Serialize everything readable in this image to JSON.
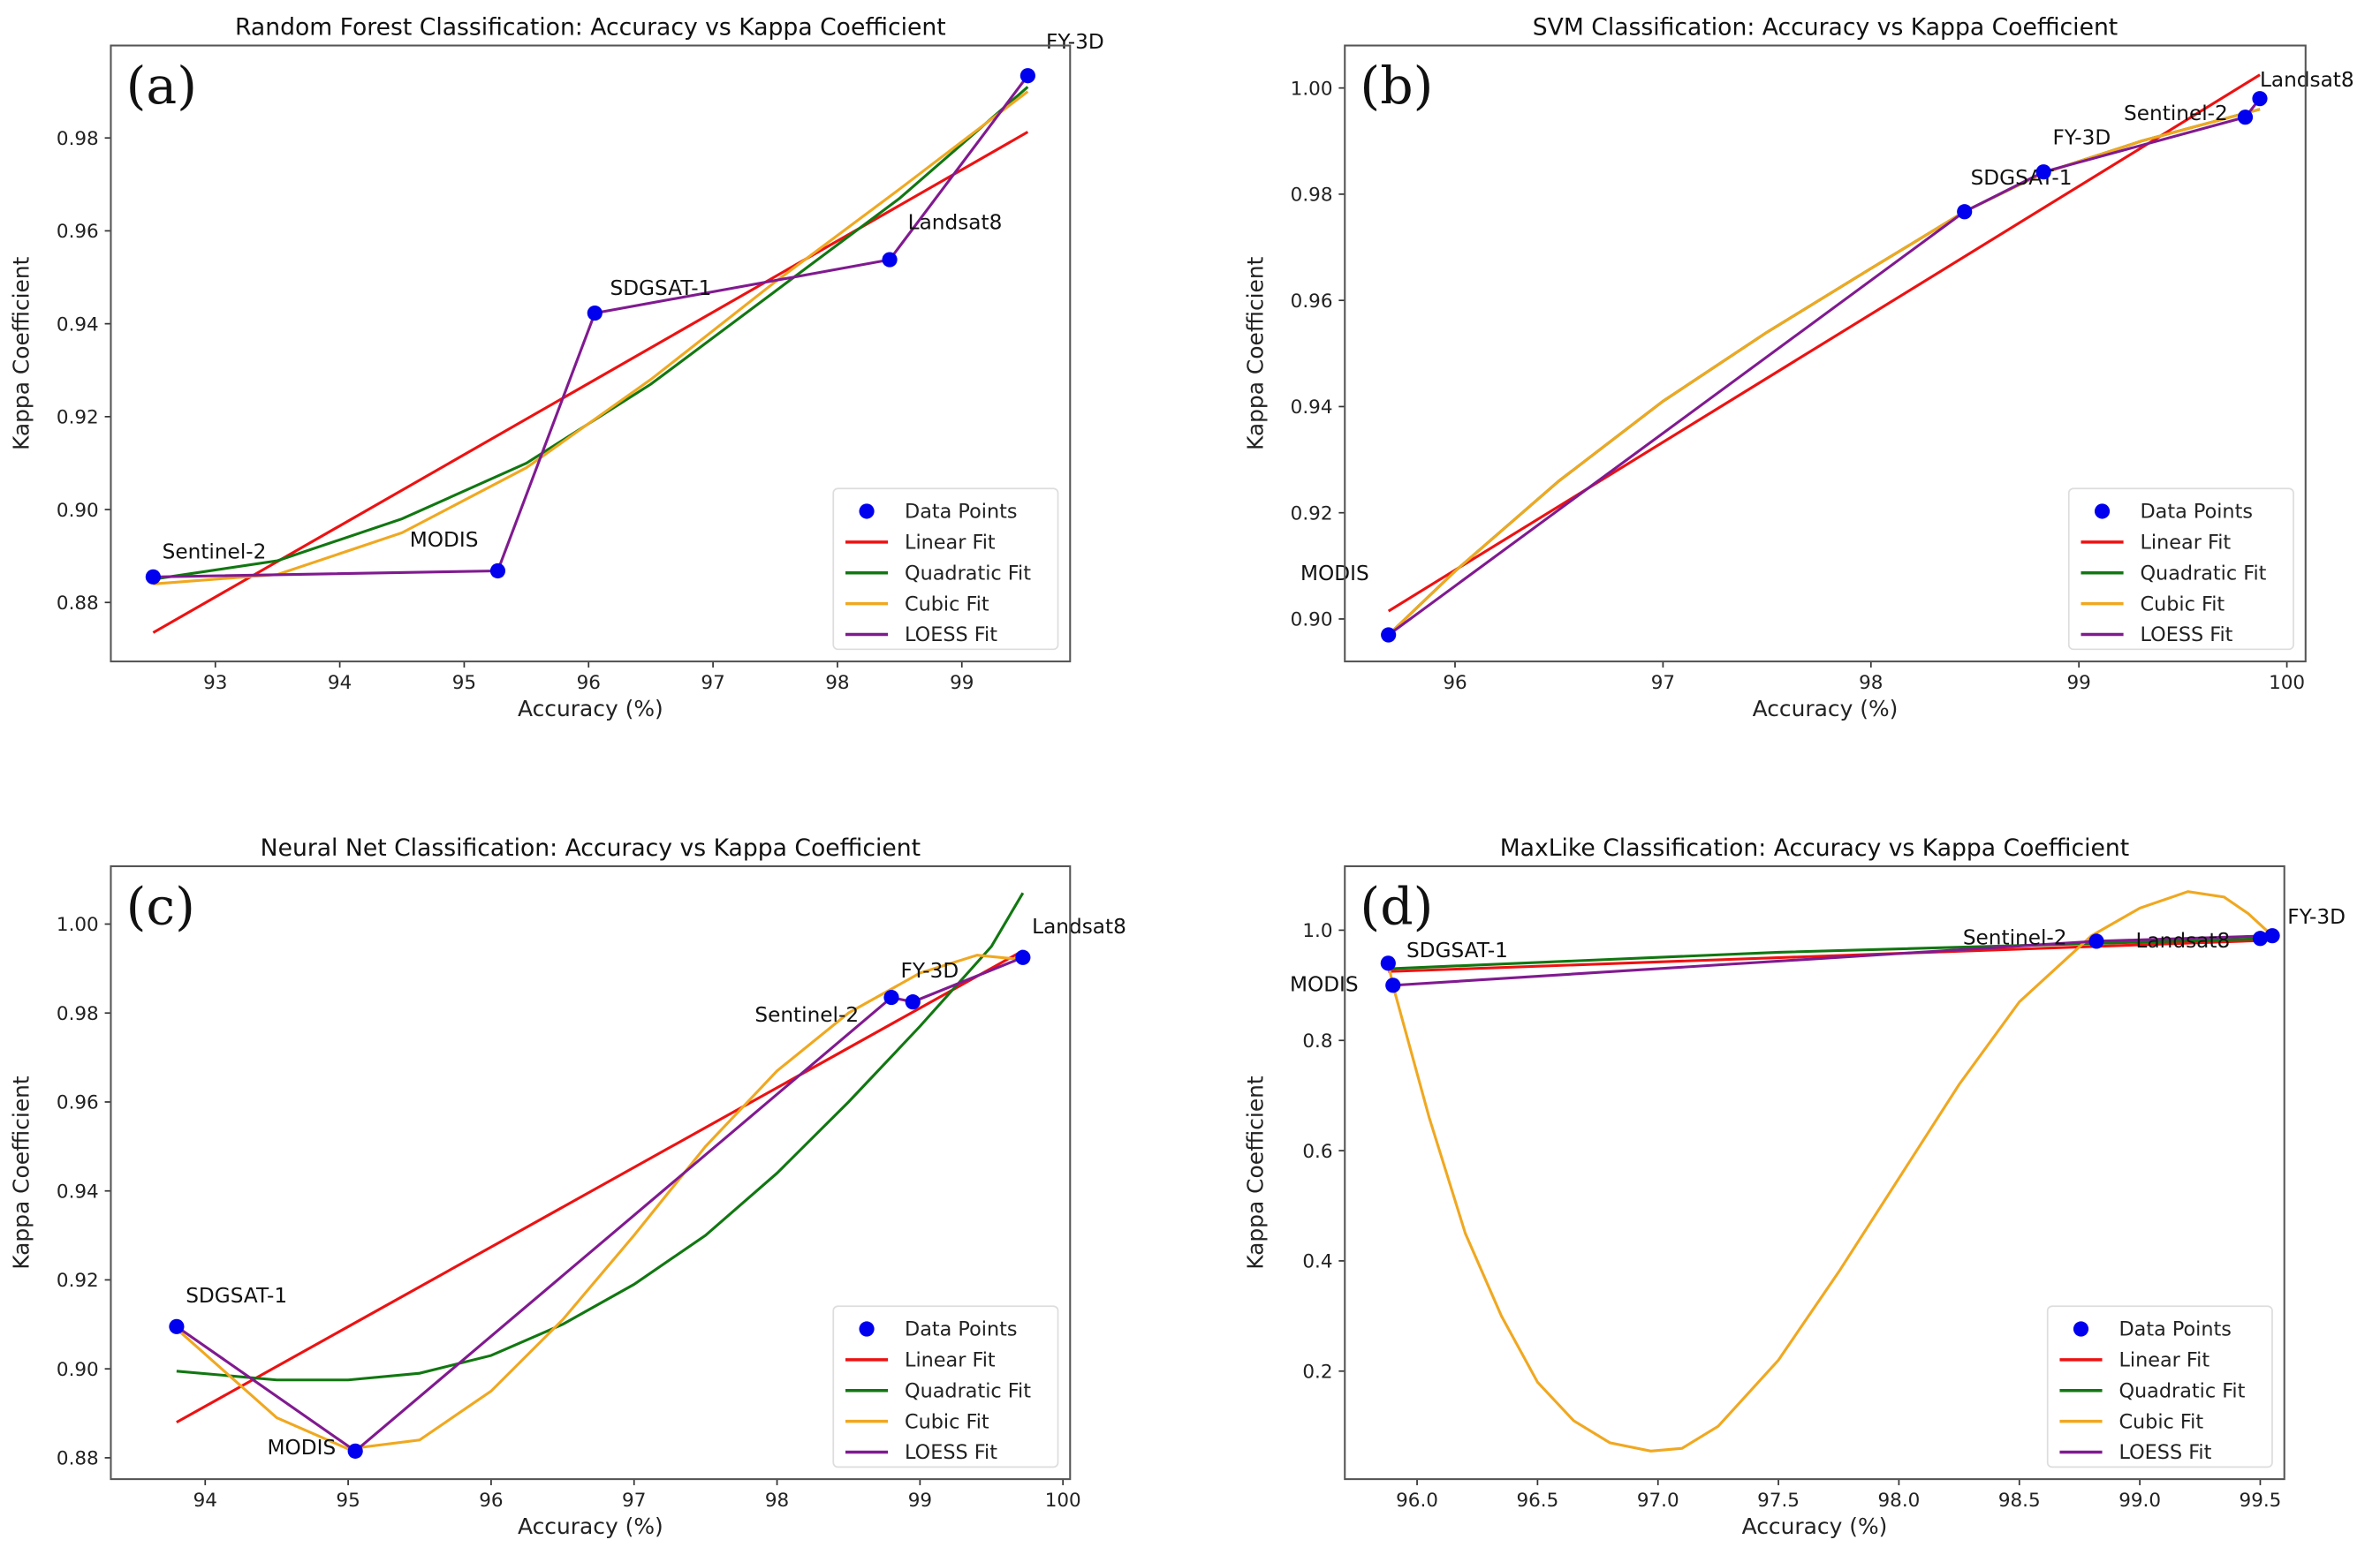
{
  "legend": [
    "Data Points",
    "Linear Fit",
    "Quadratic Fit",
    "Cubic Fit",
    "LOESS Fit"
  ],
  "colors": {
    "points": "#0000ee",
    "linear": "#ee1111",
    "quadratic": "#117711",
    "cubic": "#f0a820",
    "loess": "#801a90"
  },
  "chart_data": [
    {
      "type": "line",
      "panel": "(a)",
      "title": "Random Forest Classification: Accuracy vs Kappa Coefficient",
      "xlabel": "Accuracy (%)",
      "ylabel": "Kappa Coefficient",
      "xlim": [
        92.16,
        99.87
      ],
      "ylim": [
        0.8673,
        0.9999
      ],
      "xticks": [
        93,
        94,
        95,
        96,
        97,
        98,
        99
      ],
      "xtick_labels": [
        "93",
        "94",
        "95",
        "96",
        "97",
        "98",
        "99"
      ],
      "yticks": [
        0.88,
        0.9,
        0.92,
        0.94,
        0.96,
        0.98
      ],
      "ytick_labels": [
        "0.88",
        "0.90",
        "0.92",
        "0.94",
        "0.96",
        "0.98"
      ],
      "legend_position": "lower-right",
      "points": [
        {
          "label": "Sentinel-2",
          "x": 92.5,
          "y": 0.8855
        },
        {
          "label": "MODIS",
          "x": 95.27,
          "y": 0.8868
        },
        {
          "label": "SDGSAT-1",
          "x": 96.05,
          "y": 0.9423
        },
        {
          "label": "Landsat8",
          "x": 98.42,
          "y": 0.9538
        },
        {
          "label": "FY-3D",
          "x": 99.53,
          "y": 0.9934
        }
      ],
      "fits": {
        "linear": [
          [
            92.5,
            0.8735
          ],
          [
            99.53,
            0.9813
          ]
        ],
        "quadratic": [
          [
            92.5,
            0.885
          ],
          [
            93.5,
            0.889
          ],
          [
            94.5,
            0.898
          ],
          [
            95.5,
            0.91
          ],
          [
            96.5,
            0.927
          ],
          [
            97.5,
            0.947
          ],
          [
            98.5,
            0.967
          ],
          [
            99.53,
            0.991
          ]
        ],
        "cubic": [
          [
            92.5,
            0.884
          ],
          [
            93.5,
            0.886
          ],
          [
            94.5,
            0.895
          ],
          [
            95.5,
            0.909
          ],
          [
            96.5,
            0.928
          ],
          [
            97.5,
            0.949
          ],
          [
            98.5,
            0.969
          ],
          [
            99.53,
            0.99
          ]
        ],
        "loess": [
          [
            92.5,
            0.8855
          ],
          [
            95.27,
            0.8868
          ],
          [
            96.05,
            0.9423
          ],
          [
            98.42,
            0.9538
          ],
          [
            99.53,
            0.9934
          ]
        ]
      }
    },
    {
      "type": "line",
      "panel": "(b)",
      "title": "SVM Classification: Accuracy vs Kappa Coefficient",
      "xlabel": "Accuracy (%)",
      "ylabel": "Kappa Coefficient",
      "xlim": [
        95.47,
        100.09
      ],
      "ylim": [
        0.892,
        1.008
      ],
      "xticks": [
        96,
        97,
        98,
        99,
        100
      ],
      "xtick_labels": [
        "96",
        "97",
        "98",
        "99",
        "100"
      ],
      "yticks": [
        0.9,
        0.92,
        0.94,
        0.96,
        0.98,
        1.0
      ],
      "ytick_labels": [
        "0.90",
        "0.92",
        "0.94",
        "0.96",
        "0.98",
        "1.00"
      ],
      "legend_position": "lower-right",
      "points": [
        {
          "label": "MODIS",
          "x": 95.68,
          "y": 0.897
        },
        {
          "label": "SDGSAT-1",
          "x": 98.45,
          "y": 0.9767
        },
        {
          "label": "FY-3D",
          "x": 98.83,
          "y": 0.9842
        },
        {
          "label": "Sentinel-2",
          "x": 99.8,
          "y": 0.9945
        },
        {
          "label": "Landsat8",
          "x": 99.87,
          "y": 0.998
        }
      ],
      "fits": {
        "linear": [
          [
            95.68,
            0.9015
          ],
          [
            99.87,
            1.0025
          ]
        ],
        "quadratic": [
          [
            95.68,
            0.897
          ],
          [
            96,
            0.909
          ],
          [
            96.5,
            0.926
          ],
          [
            97,
            0.941
          ],
          [
            97.5,
            0.954
          ],
          [
            98,
            0.966
          ],
          [
            98.45,
            0.9767
          ],
          [
            98.83,
            0.984
          ],
          [
            99.3,
            0.99
          ],
          [
            99.87,
            0.996
          ]
        ],
        "cubic": [
          [
            95.68,
            0.897
          ],
          [
            96,
            0.909
          ],
          [
            96.5,
            0.926
          ],
          [
            97,
            0.941
          ],
          [
            97.5,
            0.954
          ],
          [
            98,
            0.966
          ],
          [
            98.45,
            0.9767
          ],
          [
            98.83,
            0.984
          ],
          [
            99.3,
            0.99
          ],
          [
            99.87,
            0.996
          ]
        ],
        "loess": [
          [
            95.68,
            0.897
          ],
          [
            98.45,
            0.9767
          ],
          [
            98.83,
            0.9842
          ],
          [
            99.8,
            0.9945
          ],
          [
            99.87,
            0.998
          ]
        ]
      }
    },
    {
      "type": "line",
      "panel": "(c)",
      "title": "Neural Net Classification: Accuracy vs Kappa Coefficient",
      "xlabel": "Accuracy (%)",
      "ylabel": "Kappa Coefficient",
      "xlim": [
        93.34,
        100.05
      ],
      "ylim": [
        0.8752,
        1.013
      ],
      "xticks": [
        94,
        95,
        96,
        97,
        98,
        99,
        100
      ],
      "xtick_labels": [
        "94",
        "95",
        "96",
        "97",
        "98",
        "99",
        "100"
      ],
      "yticks": [
        0.88,
        0.9,
        0.92,
        0.94,
        0.96,
        0.98,
        1.0
      ],
      "ytick_labels": [
        "0.88",
        "0.90",
        "0.92",
        "0.94",
        "0.96",
        "0.98",
        "1.00"
      ],
      "legend_position": "lower-right",
      "points": [
        {
          "label": "SDGSAT-1",
          "x": 93.8,
          "y": 0.9095
        },
        {
          "label": "MODIS",
          "x": 95.05,
          "y": 0.8815
        },
        {
          "label": "Sentinel-2",
          "x": 98.8,
          "y": 0.9835
        },
        {
          "label": "FY-3D",
          "x": 98.95,
          "y": 0.9825
        },
        {
          "label": "Landsat8",
          "x": 99.72,
          "y": 0.9925
        }
      ],
      "fits": {
        "linear": [
          [
            93.8,
            0.888
          ],
          [
            99.72,
            0.994
          ]
        ],
        "quadratic": [
          [
            93.8,
            0.8995
          ],
          [
            94.5,
            0.8975
          ],
          [
            95,
            0.8975
          ],
          [
            95.5,
            0.899
          ],
          [
            96,
            0.903
          ],
          [
            96.5,
            0.91
          ],
          [
            97,
            0.919
          ],
          [
            97.5,
            0.93
          ],
          [
            98,
            0.944
          ],
          [
            98.5,
            0.96
          ],
          [
            99,
            0.977
          ],
          [
            99.5,
            0.995
          ],
          [
            99.72,
            1.007
          ]
        ],
        "cubic": [
          [
            93.8,
            0.909
          ],
          [
            94.5,
            0.889
          ],
          [
            95,
            0.882
          ],
          [
            95.5,
            0.884
          ],
          [
            96,
            0.895
          ],
          [
            96.5,
            0.911
          ],
          [
            97,
            0.93
          ],
          [
            97.5,
            0.95
          ],
          [
            98,
            0.967
          ],
          [
            98.5,
            0.98
          ],
          [
            99,
            0.989
          ],
          [
            99.4,
            0.993
          ],
          [
            99.72,
            0.992
          ]
        ],
        "loess": [
          [
            93.8,
            0.9095
          ],
          [
            95.05,
            0.8815
          ],
          [
            98.8,
            0.9835
          ],
          [
            98.95,
            0.9825
          ],
          [
            99.72,
            0.9925
          ]
        ]
      }
    },
    {
      "type": "line",
      "panel": "(d)",
      "title": "MaxLike Classification: Accuracy vs Kappa Coefficient",
      "xlabel": "Accuracy (%)",
      "ylabel": "Kappa Coefficient",
      "xlim": [
        95.7,
        99.6
      ],
      "ylim": [
        0.004,
        1.116
      ],
      "xticks": [
        96.0,
        96.5,
        97.0,
        97.5,
        98.0,
        98.5,
        99.0,
        99.5
      ],
      "xtick_labels": [
        "96.0",
        "96.5",
        "97.0",
        "97.5",
        "98.0",
        "98.5",
        "99.0",
        "99.5"
      ],
      "yticks": [
        0.2,
        0.4,
        0.6,
        0.8,
        1.0
      ],
      "ytick_labels": [
        "0.2",
        "0.4",
        "0.6",
        "0.8",
        "1.0"
      ],
      "legend_position": "lower-right",
      "points": [
        {
          "label": "SDGSAT-1",
          "x": 95.88,
          "y": 0.94
        },
        {
          "label": "MODIS",
          "x": 95.9,
          "y": 0.9
        },
        {
          "label": "Sentinel-2",
          "x": 98.82,
          "y": 0.98
        },
        {
          "label": "Landsat8",
          "x": 99.5,
          "y": 0.985
        },
        {
          "label": "FY-3D",
          "x": 99.55,
          "y": 0.99
        }
      ],
      "fits": {
        "linear": [
          [
            95.88,
            0.925
          ],
          [
            99.55,
            0.982
          ]
        ],
        "quadratic": [
          [
            95.88,
            0.93
          ],
          [
            97.5,
            0.96
          ],
          [
            99.55,
            0.985
          ]
        ],
        "cubic": [
          [
            95.88,
            0.94
          ],
          [
            95.9,
            0.9
          ],
          [
            96.05,
            0.66
          ],
          [
            96.2,
            0.45
          ],
          [
            96.35,
            0.3
          ],
          [
            96.5,
            0.18
          ],
          [
            96.65,
            0.11
          ],
          [
            96.8,
            0.07
          ],
          [
            96.97,
            0.055
          ],
          [
            97.1,
            0.06
          ],
          [
            97.25,
            0.1
          ],
          [
            97.5,
            0.22
          ],
          [
            97.75,
            0.38
          ],
          [
            98,
            0.55
          ],
          [
            98.25,
            0.72
          ],
          [
            98.5,
            0.87
          ],
          [
            98.8,
            0.99
          ],
          [
            99.0,
            1.04
          ],
          [
            99.2,
            1.07
          ],
          [
            99.35,
            1.06
          ],
          [
            99.45,
            1.03
          ],
          [
            99.55,
            0.99
          ]
        ],
        "loess": [
          [
            95.9,
            0.9
          ],
          [
            98.82,
            0.98
          ],
          [
            99.55,
            0.99
          ]
        ]
      }
    }
  ]
}
